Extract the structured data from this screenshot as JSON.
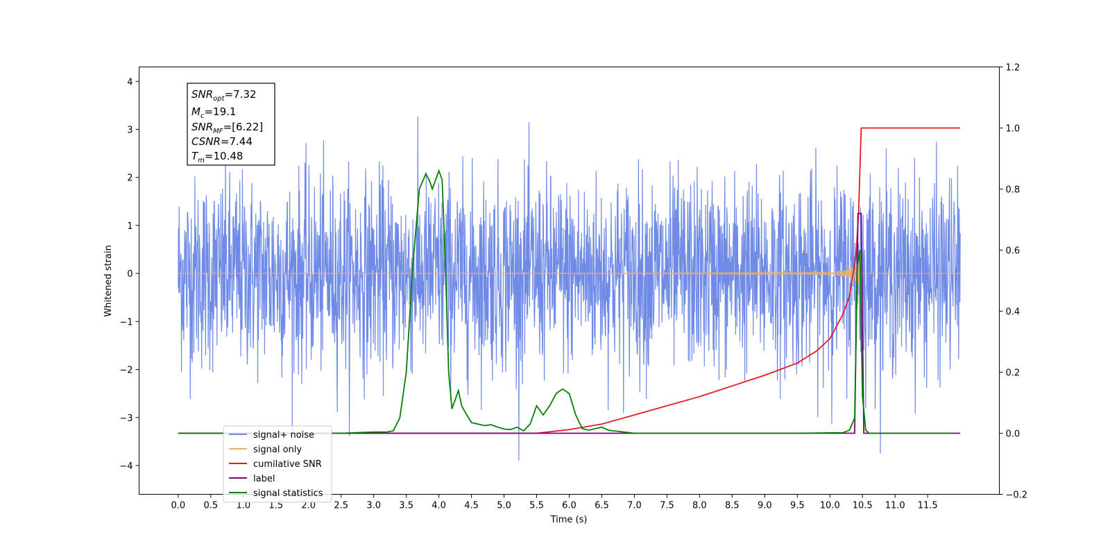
{
  "chart_data": {
    "type": "line",
    "title": "",
    "xlabel": "Time (s)",
    "ylabel": "Whitened strain",
    "xlim": [
      -0.6,
      12.6
    ],
    "ylim": [
      -4.6,
      4.3
    ],
    "ylim_right": [
      -0.2,
      1.2
    ],
    "grid": false,
    "legend_placement": "lower-left",
    "x_ticks": [
      "0.0",
      "0.5",
      "1.0",
      "1.5",
      "2.0",
      "2.5",
      "3.0",
      "3.5",
      "4.0",
      "4.5",
      "5.0",
      "5.5",
      "6.0",
      "6.5",
      "7.0",
      "7.5",
      "8.0",
      "8.5",
      "9.0",
      "9.5",
      "10.0",
      "10.5",
      "11.0",
      "11.5"
    ],
    "y_ticks_left": [
      "4",
      "3",
      "2",
      "1",
      "0",
      "−1",
      "−2",
      "−3",
      "−4"
    ],
    "y_ticks_right": [
      "1.2",
      "1.0",
      "0.8",
      "0.6",
      "0.4",
      "0.2",
      "0.0",
      "−0.2"
    ],
    "info_box": {
      "snr_opt": {
        "base": "SNR",
        "sub": "opt",
        "value": "=7.32"
      },
      "mc": {
        "base": "M",
        "sub": "c",
        "value": "=19.1"
      },
      "snr_mf": {
        "base": "SNR",
        "sub": "MF",
        "value": "=[6.22]"
      },
      "csnr": {
        "base": "CSNR",
        "sub": "",
        "value": "=7.44"
      },
      "tm": {
        "base": "T",
        "sub": "m",
        "value": "=10.48"
      }
    },
    "series": [
      {
        "name": "signal+ noise",
        "color": "#6f8be6",
        "axis": "left",
        "noise_std": 1.05,
        "noise_peak": 3.9,
        "x_range": [
          0.0,
          12.0
        ]
      },
      {
        "name": "signal only",
        "color": "#f0b060",
        "axis": "left",
        "merger_time": 10.48,
        "peak_amplitude": 0.55
      },
      {
        "name": "cumilative SNR",
        "color": "#e41a1c",
        "axis": "right",
        "x": [
          0.0,
          5.5,
          6.0,
          6.5,
          7.0,
          7.5,
          8.0,
          8.5,
          9.0,
          9.5,
          9.8,
          10.0,
          10.2,
          10.3,
          10.4,
          10.44,
          10.48,
          12.0
        ],
        "y": [
          0.0,
          0.0,
          0.012,
          0.03,
          0.06,
          0.09,
          0.12,
          0.155,
          0.19,
          0.23,
          0.27,
          0.31,
          0.39,
          0.45,
          0.58,
          0.72,
          1.0,
          1.0
        ]
      },
      {
        "name": "label",
        "color": "#800080",
        "axis": "right",
        "x": [
          0.0,
          10.38,
          10.43,
          10.48,
          10.52,
          11.0,
          12.0
        ],
        "y": [
          0.0,
          0.0,
          0.72,
          0.72,
          0.0,
          0.0,
          0.0
        ]
      },
      {
        "name": "signal statistics",
        "color": "#008000",
        "axis": "right",
        "x": [
          0.0,
          2.5,
          3.0,
          3.2,
          3.3,
          3.4,
          3.5,
          3.6,
          3.7,
          3.8,
          3.85,
          3.9,
          3.95,
          4.0,
          4.05,
          4.1,
          4.15,
          4.2,
          4.3,
          4.35,
          4.4,
          4.5,
          4.6,
          4.7,
          4.8,
          4.9,
          5.0,
          5.1,
          5.2,
          5.3,
          5.4,
          5.5,
          5.6,
          5.7,
          5.8,
          5.9,
          6.0,
          6.1,
          6.2,
          6.3,
          6.4,
          6.5,
          6.6,
          6.8,
          7.0,
          9.5,
          10.2,
          10.3,
          10.38,
          10.42,
          10.46,
          10.5,
          10.55,
          10.6,
          11.0,
          11.9
        ],
        "y": [
          0.0,
          0.0,
          0.004,
          0.004,
          0.008,
          0.05,
          0.2,
          0.55,
          0.8,
          0.85,
          0.83,
          0.8,
          0.83,
          0.86,
          0.83,
          0.55,
          0.2,
          0.08,
          0.14,
          0.09,
          0.07,
          0.035,
          0.03,
          0.025,
          0.028,
          0.02,
          0.014,
          0.012,
          0.02,
          0.008,
          0.03,
          0.09,
          0.06,
          0.09,
          0.13,
          0.145,
          0.13,
          0.06,
          0.015,
          0.01,
          0.015,
          0.02,
          0.01,
          0.005,
          0.0,
          0.0,
          0.002,
          0.01,
          0.05,
          0.55,
          0.6,
          0.12,
          0.01,
          0.0,
          0.0,
          0.0
        ]
      }
    ]
  }
}
